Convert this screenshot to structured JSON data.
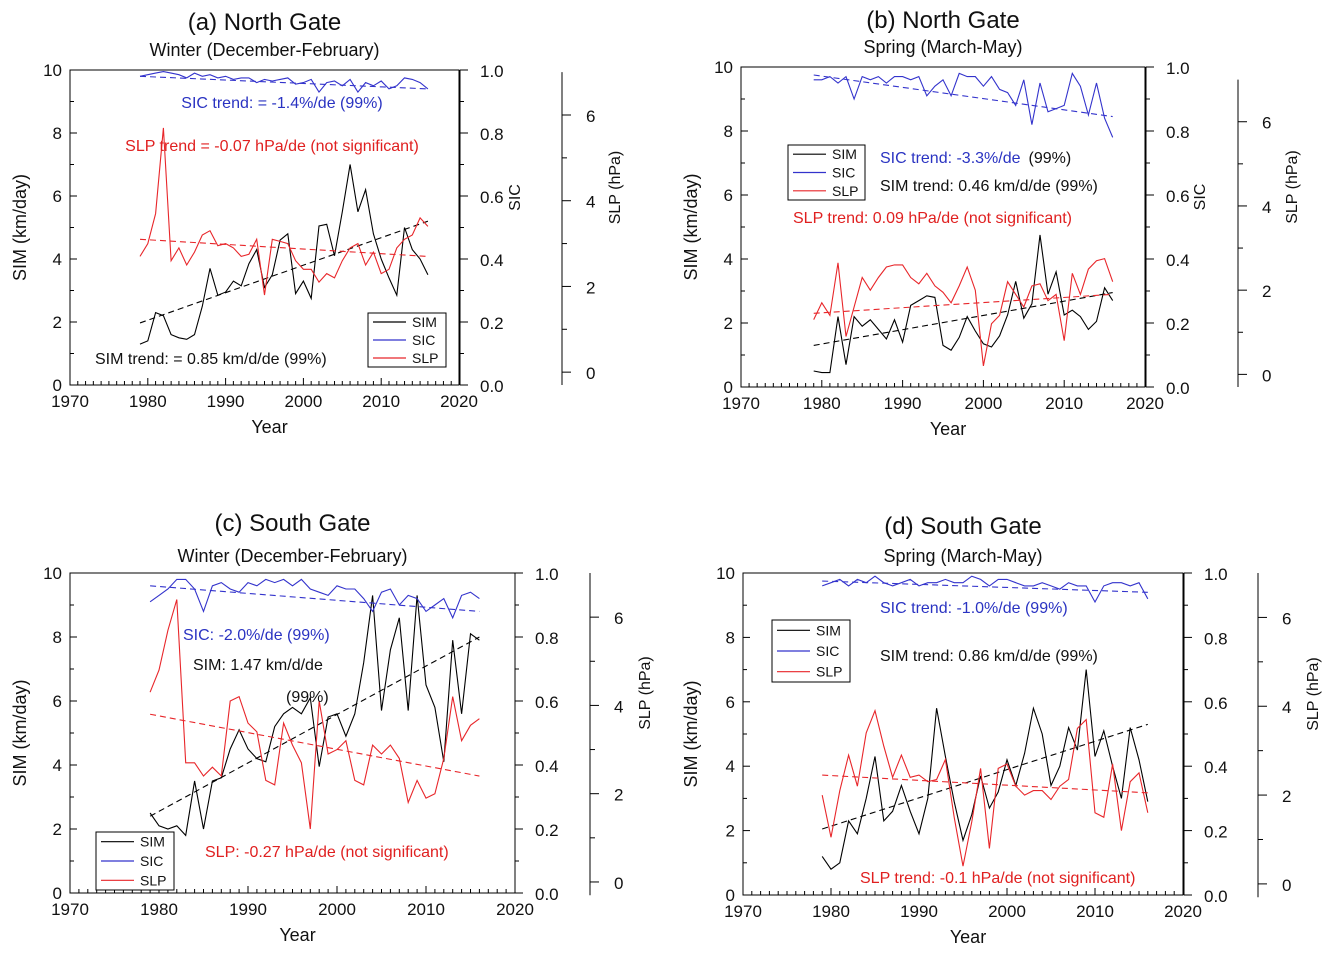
{
  "colors": {
    "sim": "#000000",
    "sic": "#3333cc",
    "slp": "#e8262a",
    "sic_text": "#2a33c2",
    "slp_text": "#e02020"
  },
  "chart_data": [
    {
      "type": "line",
      "title": "(a) North Gate",
      "subtitle": "Winter (December-February)",
      "xlabel": "Year",
      "ylabel": "SIM (km/day)",
      "y2label": "SIC",
      "y3label": "SLP (hPa)",
      "xlim": [
        1970,
        2020
      ],
      "ylim": [
        0,
        10
      ],
      "y2lim": [
        0,
        1
      ],
      "y3lim": [
        -0.3,
        7.05
      ],
      "xticks": [
        1970,
        1980,
        1990,
        2000,
        2010,
        2020
      ],
      "yticks": [
        0,
        2,
        4,
        6,
        8,
        10
      ],
      "y2ticks": [
        "0.0",
        "0.2",
        "0.4",
        "0.6",
        "0.8",
        "1.0"
      ],
      "y3ticks": [
        0,
        2,
        4,
        6
      ],
      "legend": [
        "SIM",
        "SIC",
        "SLP"
      ],
      "legend_position": "bottom-right",
      "annotations": [
        {
          "text": "SIC trend: = -1.4%/de (99%)",
          "color": "sic",
          "pos": "upper"
        },
        {
          "text": "SLP trend = -0.07 hPa/de (not significant)",
          "color": "slp",
          "pos": "upper-mid"
        },
        {
          "text": "SIM trend: = 0.85 km/d/de (99%)",
          "color": "sim",
          "pos": "lower-left"
        }
      ],
      "x": [
        1979,
        1980,
        1981,
        1982,
        1983,
        1984,
        1985,
        1986,
        1987,
        1988,
        1989,
        1990,
        1991,
        1992,
        1993,
        1994,
        1995,
        1996,
        1997,
        1998,
        1999,
        2000,
        2001,
        2002,
        2003,
        2004,
        2005,
        2006,
        2007,
        2008,
        2009,
        2010,
        2011,
        2012,
        2013,
        2014,
        2015,
        2016
      ],
      "series": [
        {
          "name": "SIM",
          "axis": "y",
          "values": [
            1.3,
            1.4,
            2.3,
            2.2,
            1.6,
            1.5,
            1.45,
            1.6,
            2.5,
            3.7,
            2.85,
            2.95,
            3.3,
            3.15,
            3.85,
            4.3,
            3.1,
            3.5,
            4.6,
            4.8,
            2.9,
            3.3,
            2.75,
            5.05,
            5.1,
            4.1,
            5.5,
            7.0,
            5.5,
            6.2,
            4.8,
            4.0,
            3.4,
            2.85,
            5.0,
            4.3,
            4.0,
            3.5
          ],
          "trend": [
            1.97,
            5.2
          ]
        },
        {
          "name": "SIC",
          "axis": "y2",
          "values": [
            0.98,
            0.985,
            0.99,
            0.995,
            0.99,
            0.985,
            0.975,
            0.99,
            0.98,
            0.985,
            0.975,
            0.98,
            0.97,
            0.975,
            0.975,
            0.96,
            0.97,
            0.965,
            0.97,
            0.975,
            0.955,
            0.96,
            0.97,
            0.93,
            0.96,
            0.965,
            0.95,
            0.97,
            0.93,
            0.96,
            0.95,
            0.965,
            0.94,
            0.95,
            0.975,
            0.97,
            0.96,
            0.94
          ],
          "trend": [
            0.98,
            0.94
          ]
        },
        {
          "name": "SLP",
          "axis": "y3",
          "values": [
            2.7,
            3.0,
            3.7,
            5.7,
            2.6,
            2.9,
            2.5,
            2.8,
            3.2,
            3.3,
            2.95,
            3.0,
            2.9,
            2.7,
            2.75,
            3.1,
            1.8,
            3.1,
            3.05,
            3.0,
            2.6,
            2.4,
            2.4,
            2.1,
            2.3,
            2.2,
            2.6,
            2.9,
            3.0,
            2.5,
            2.8,
            2.3,
            2.4,
            2.9,
            3.1,
            3.2,
            3.6,
            3.4
          ],
          "trend": [
            3.1,
            2.7
          ]
        }
      ]
    },
    {
      "type": "line",
      "title": "(b) North Gate",
      "subtitle": "Spring (March-May)",
      "xlabel": "Year",
      "ylabel": "SIM (km/day)",
      "y2label": "SIC",
      "y3label": "SLP (hPa)",
      "xlim": [
        1970,
        2020
      ],
      "ylim": [
        0,
        10
      ],
      "y2lim": [
        0,
        1
      ],
      "y3lim": [
        -0.3,
        7.3
      ],
      "xticks": [
        1970,
        1980,
        1990,
        2000,
        2010,
        2020
      ],
      "yticks": [
        0,
        2,
        4,
        6,
        8,
        10
      ],
      "y2ticks": [
        "0.0",
        "0.2",
        "0.4",
        "0.6",
        "0.8",
        "1.0"
      ],
      "y3ticks": [
        0,
        2,
        4,
        6
      ],
      "legend": [
        "SIM",
        "SIC",
        "SLP"
      ],
      "legend_position": "mid-left",
      "annotations": [
        {
          "text": "SIC trend: -3.3%/de",
          "suffix": "(99%)",
          "color": "sic",
          "pos": "mid"
        },
        {
          "text": "SIM trend: 0.46 km/d/de (99%)",
          "color": "sim",
          "pos": "mid"
        },
        {
          "text": "SLP trend: 0.09 hPa/de (not significant)",
          "color": "slp",
          "pos": "mid"
        }
      ],
      "x": [
        1979,
        1980,
        1981,
        1982,
        1983,
        1984,
        1985,
        1986,
        1987,
        1988,
        1989,
        1990,
        1991,
        1992,
        1993,
        1994,
        1995,
        1996,
        1997,
        1998,
        1999,
        2000,
        2001,
        2002,
        2003,
        2004,
        2005,
        2006,
        2007,
        2008,
        2009,
        2010,
        2011,
        2012,
        2013,
        2014,
        2015,
        2016
      ],
      "series": [
        {
          "name": "SIM",
          "axis": "y",
          "values": [
            0.5,
            0.45,
            0.45,
            2.2,
            0.7,
            2.2,
            1.9,
            2.1,
            1.8,
            1.5,
            2.1,
            1.4,
            2.55,
            2.7,
            2.85,
            2.8,
            1.3,
            1.15,
            1.55,
            2.2,
            1.75,
            1.35,
            1.25,
            1.6,
            2.25,
            3.3,
            2.15,
            2.6,
            4.75,
            2.9,
            3.6,
            2.25,
            2.4,
            2.2,
            1.8,
            2.05,
            3.1,
            2.7
          ],
          "trend": [
            1.3,
            2.95
          ]
        },
        {
          "name": "SIC",
          "axis": "y2",
          "values": [
            0.96,
            0.96,
            0.97,
            0.95,
            0.97,
            0.9,
            0.97,
            0.96,
            0.97,
            0.95,
            0.97,
            0.97,
            0.96,
            0.97,
            0.91,
            0.94,
            0.96,
            0.91,
            0.98,
            0.97,
            0.97,
            0.94,
            0.97,
            0.93,
            0.92,
            0.88,
            0.96,
            0.82,
            0.95,
            0.86,
            0.87,
            0.88,
            0.98,
            0.94,
            0.85,
            0.95,
            0.84,
            0.78
          ],
          "trend": [
            0.975,
            0.845
          ]
        },
        {
          "name": "SLP",
          "axis": "y3",
          "values": [
            1.3,
            1.7,
            1.4,
            2.65,
            0.9,
            1.6,
            2.3,
            2.0,
            2.3,
            2.55,
            2.6,
            2.6,
            2.3,
            2.15,
            2.4,
            2.1,
            1.95,
            1.7,
            2.1,
            2.55,
            2.0,
            0.2,
            1.2,
            1.4,
            2.2,
            1.9,
            1.6,
            2.1,
            2.15,
            1.75,
            1.9,
            0.8,
            2.4,
            1.9,
            2.5,
            2.7,
            2.75,
            2.2
          ],
          "trend": [
            1.45,
            1.9
          ]
        }
      ]
    },
    {
      "type": "line",
      "title": "(c) South Gate",
      "subtitle": "Winter (December-February)",
      "xlabel": "Year",
      "ylabel": "SIM (km/day)",
      "y2label": "",
      "y3label": "SLP (hPa)",
      "xlim": [
        1970,
        2020
      ],
      "ylim": [
        0,
        10
      ],
      "y2lim": [
        0,
        1
      ],
      "y3lim": [
        -0.25,
        7.0
      ],
      "xticks": [
        1970,
        1980,
        1990,
        2000,
        2010,
        2020
      ],
      "yticks": [
        0,
        2,
        4,
        6,
        8,
        10
      ],
      "y2ticks": [
        "0.0",
        "0.2",
        "0.4",
        "0.6",
        "0.8",
        "1.0"
      ],
      "y3ticks": [
        0,
        2,
        4,
        6
      ],
      "legend": [
        "SIM",
        "SIC",
        "SLP"
      ],
      "legend_position": "bottom-left",
      "annotations": [
        {
          "text": "SIC: -2.0%/de (99%)",
          "color": "sic",
          "pos": "upper"
        },
        {
          "text": "SIM: 1.47 km/d/de",
          "color": "sim",
          "pos": "mid"
        },
        {
          "text": "(99%)",
          "color": "sim",
          "pos": "mid"
        },
        {
          "text": "SLP: -0.27 hPa/de (not significant)",
          "color": "slp",
          "pos": "bottom"
        }
      ],
      "x": [
        1979,
        1980,
        1981,
        1982,
        1983,
        1984,
        1985,
        1986,
        1987,
        1988,
        1989,
        1990,
        1991,
        1992,
        1993,
        1994,
        1995,
        1996,
        1997,
        1998,
        1999,
        2000,
        2001,
        2002,
        2003,
        2004,
        2005,
        2006,
        2007,
        2008,
        2009,
        2010,
        2011,
        2012,
        2013,
        2014,
        2015,
        2016
      ],
      "series": [
        {
          "name": "SIM",
          "axis": "y",
          "values": [
            2.5,
            2.1,
            2.0,
            2.1,
            1.8,
            3.5,
            2.0,
            3.5,
            3.6,
            4.5,
            5.1,
            4.5,
            4.2,
            4.1,
            5.2,
            5.6,
            5.8,
            5.6,
            6.1,
            3.95,
            5.5,
            5.6,
            4.9,
            5.6,
            7.2,
            9.3,
            5.7,
            7.6,
            8.6,
            5.7,
            9.3,
            6.5,
            5.8,
            4.1,
            7.9,
            5.6,
            8.1,
            7.9
          ],
          "trend": [
            2.4,
            8.0
          ]
        },
        {
          "name": "SIC",
          "axis": "y2",
          "values": [
            0.91,
            0.93,
            0.95,
            0.98,
            0.98,
            0.95,
            0.88,
            0.96,
            0.97,
            0.95,
            0.94,
            0.97,
            0.96,
            0.98,
            0.97,
            0.98,
            0.96,
            0.98,
            0.95,
            0.94,
            0.93,
            0.96,
            0.95,
            0.95,
            0.92,
            0.88,
            0.94,
            0.95,
            0.9,
            0.93,
            0.92,
            0.88,
            0.9,
            0.92,
            0.86,
            0.93,
            0.94,
            0.92
          ],
          "trend": [
            0.96,
            0.88
          ]
        },
        {
          "name": "SLP",
          "axis": "y3",
          "values": [
            4.3,
            4.8,
            5.7,
            6.4,
            2.7,
            2.7,
            2.4,
            2.6,
            2.4,
            4.1,
            4.2,
            3.6,
            3.4,
            2.3,
            2.2,
            3.6,
            3.1,
            2.7,
            1.2,
            4.1,
            2.9,
            3.0,
            3.2,
            2.3,
            2.2,
            3.1,
            2.9,
            3.1,
            2.8,
            1.8,
            2.3,
            1.9,
            2.0,
            2.8,
            4.2,
            3.2,
            3.55,
            3.7
          ],
          "trend": [
            3.8,
            2.4
          ]
        }
      ]
    },
    {
      "type": "line",
      "title": "(d) South Gate",
      "subtitle": "Spring (March-May)",
      "xlabel": "Year",
      "ylabel": "SIM (km/day)",
      "y2label": "",
      "y3label": "SLP (hPa)",
      "xlim": [
        1970,
        2020
      ],
      "ylim": [
        0,
        10
      ],
      "y2lim": [
        0,
        1
      ],
      "y3lim": [
        -0.25,
        7.0
      ],
      "xticks": [
        1970,
        1980,
        1990,
        2000,
        2010,
        2020
      ],
      "yticks": [
        0,
        2,
        4,
        6,
        8,
        10
      ],
      "y2ticks": [
        "0.0",
        "0.2",
        "0.4",
        "0.6",
        "0.8",
        "1.0"
      ],
      "y3ticks": [
        0,
        2,
        4,
        6
      ],
      "legend": [
        "SIM",
        "SIC",
        "SLP"
      ],
      "legend_position": "top-left",
      "annotations": [
        {
          "text": "SIC trend: -1.0%/de (99%)",
          "color": "sic",
          "pos": "upper"
        },
        {
          "text": "SIM trend: 0.86 km/d/de (99%)",
          "color": "sim",
          "pos": "upper-mid"
        },
        {
          "text": "SLP trend: -0.1 hPa/de (not significant)",
          "color": "slp",
          "pos": "bottom"
        }
      ],
      "x": [
        1979,
        1980,
        1981,
        1982,
        1983,
        1984,
        1985,
        1986,
        1987,
        1988,
        1989,
        1990,
        1991,
        1992,
        1993,
        1994,
        1995,
        1996,
        1997,
        1998,
        1999,
        2000,
        2001,
        2002,
        2003,
        2004,
        2005,
        2006,
        2007,
        2008,
        2009,
        2010,
        2011,
        2012,
        2013,
        2014,
        2015,
        2016
      ],
      "series": [
        {
          "name": "SIM",
          "axis": "y",
          "values": [
            1.2,
            0.8,
            1.0,
            2.3,
            1.9,
            3.0,
            4.3,
            2.3,
            2.6,
            3.4,
            2.6,
            1.9,
            3.0,
            5.8,
            4.3,
            2.9,
            1.7,
            2.5,
            3.7,
            2.7,
            3.2,
            4.2,
            3.4,
            4.4,
            5.8,
            5.0,
            3.4,
            4.0,
            5.2,
            4.5,
            7.0,
            4.3,
            5.1,
            4.0,
            3.0,
            5.2,
            4.2,
            2.9
          ],
          "trend": [
            2.05,
            5.3
          ]
        },
        {
          "name": "SIC",
          "axis": "y2",
          "values": [
            0.96,
            0.97,
            0.98,
            0.96,
            0.98,
            0.97,
            0.99,
            0.97,
            0.96,
            0.97,
            0.98,
            0.96,
            0.97,
            0.97,
            0.98,
            0.97,
            0.97,
            0.99,
            0.98,
            0.96,
            0.98,
            0.98,
            0.97,
            0.96,
            0.96,
            0.97,
            0.96,
            0.95,
            0.97,
            0.96,
            0.96,
            0.91,
            0.96,
            0.97,
            0.97,
            0.96,
            0.97,
            0.92
          ],
          "trend": [
            0.975,
            0.94
          ]
        },
        {
          "name": "SLP",
          "axis": "y3",
          "values": [
            2.0,
            1.05,
            2.1,
            2.9,
            2.2,
            3.4,
            3.9,
            3.1,
            2.4,
            2.9,
            2.4,
            2.45,
            2.3,
            2.35,
            2.8,
            1.5,
            0.4,
            1.4,
            2.6,
            0.8,
            2.6,
            2.7,
            2.2,
            2.0,
            2.1,
            2.1,
            1.9,
            2.2,
            2.35,
            3.5,
            3.7,
            1.6,
            1.5,
            2.7,
            1.2,
            2.3,
            2.5,
            1.6
          ],
          "trend": [
            2.45,
            2.05
          ]
        }
      ]
    }
  ]
}
